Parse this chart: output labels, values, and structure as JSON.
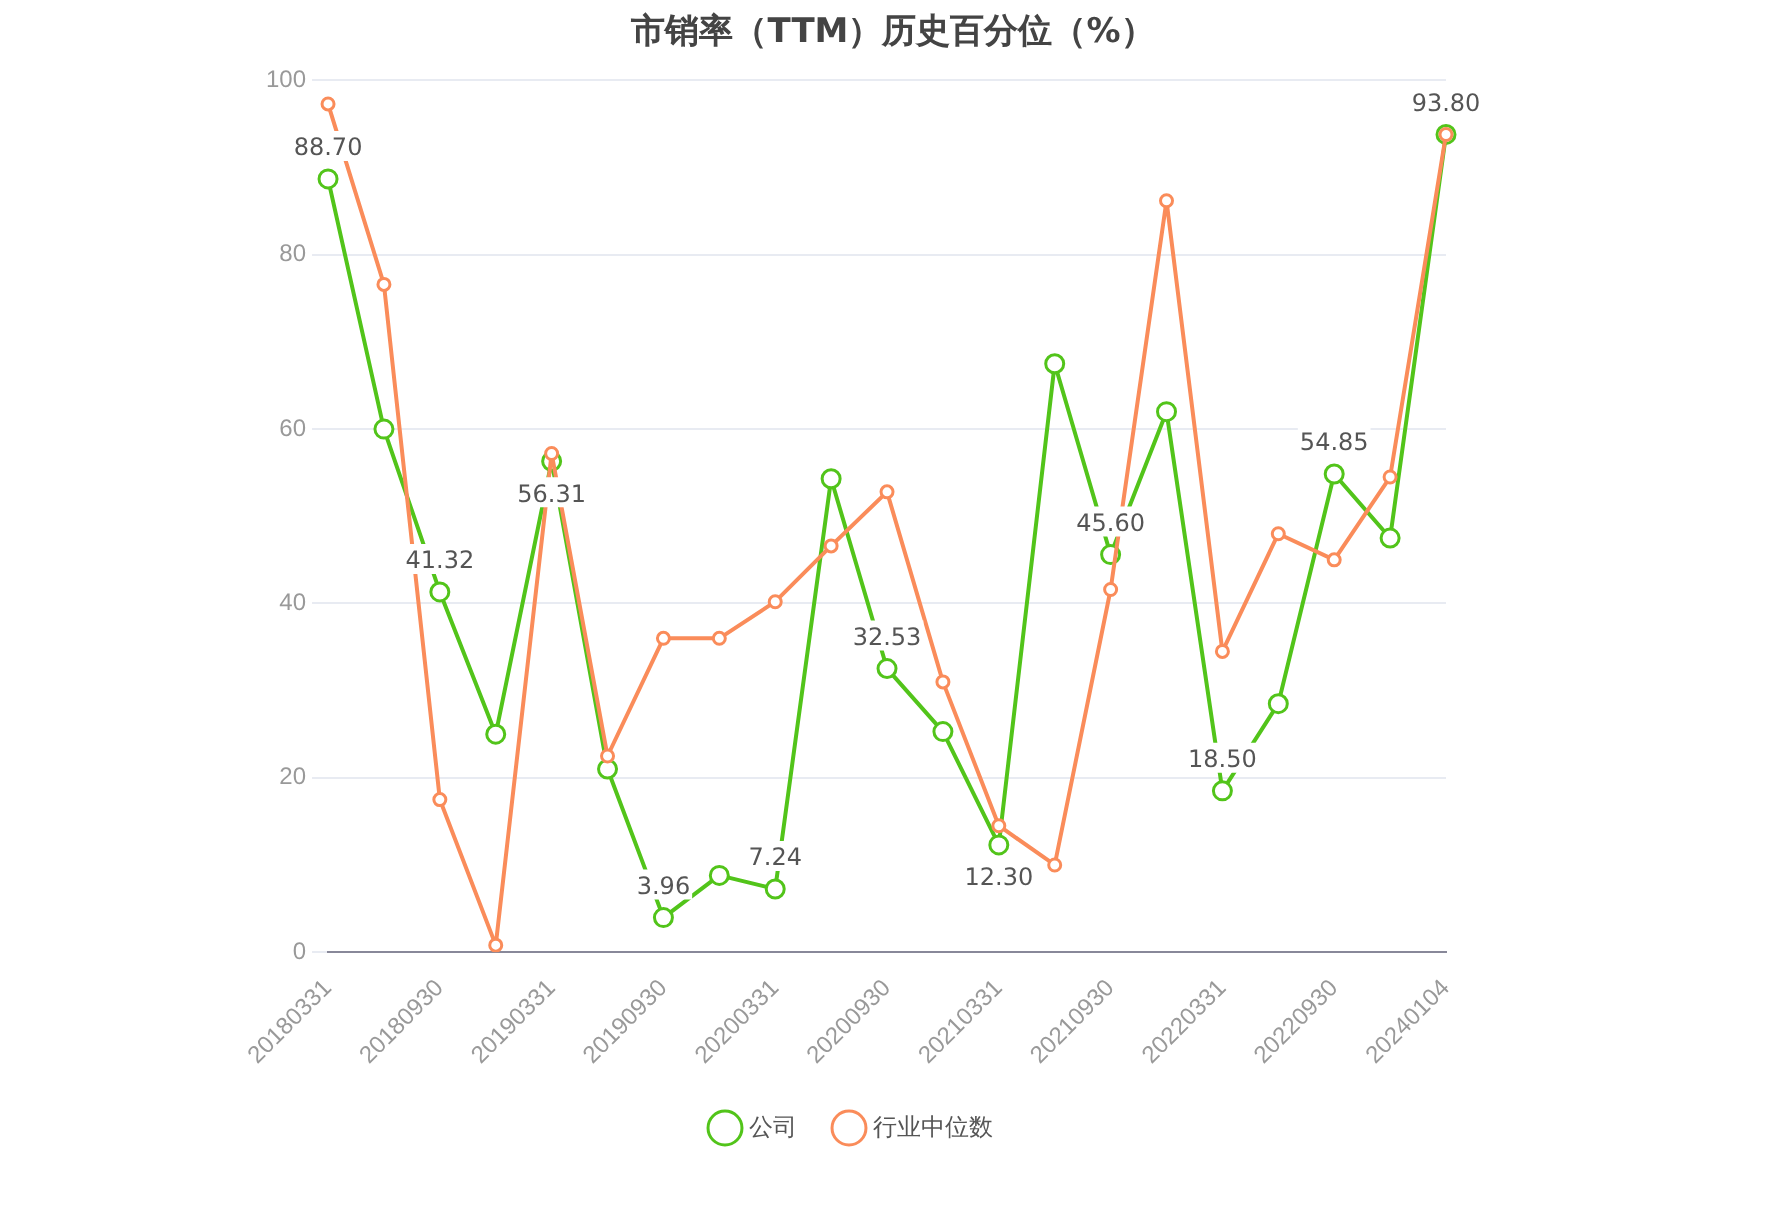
{
  "chart_data": {
    "type": "line",
    "title": "市销率（TTM）历史百分位（%）",
    "categories": [
      "20180331",
      null,
      "20180930",
      null,
      "20190331",
      null,
      "20190930",
      null,
      "20200331",
      null,
      "20200930",
      null,
      "20210331",
      null,
      "20210930",
      null,
      "20220331",
      null,
      "20220930",
      null,
      "20240104"
    ],
    "series": [
      {
        "name": "公司",
        "color": "#52c41a",
        "values": [
          88.7,
          60,
          41.32,
          25,
          56.31,
          21,
          3.96,
          8.8,
          7.24,
          54.3,
          32.53,
          25.3,
          12.3,
          67.5,
          45.6,
          62,
          18.5,
          28.5,
          54.85,
          47.5,
          93.8
        ],
        "value_labels": [
          "88.70",
          null,
          "41.32",
          null,
          "56.31",
          null,
          "3.96",
          null,
          "7.24",
          null,
          "32.53",
          null,
          "12.30",
          null,
          "45.60",
          null,
          "18.50",
          null,
          "54.85",
          null,
          "93.80"
        ]
      },
      {
        "name": "行业中位数",
        "color": "#fa8c5a",
        "values": [
          97.3,
          76.6,
          17.5,
          0.8,
          57.2,
          22.5,
          36,
          36,
          40.2,
          46.6,
          52.8,
          31,
          14.5,
          10,
          41.6,
          86.2,
          34.5,
          48,
          45,
          54.5,
          93.8
        ]
      }
    ],
    "ylim": [
      0,
      100
    ],
    "yticks": [
      0,
      20,
      40,
      60,
      80,
      100
    ],
    "grid": "y",
    "legend": "bottom",
    "marker": "circle",
    "line_style": "solid"
  }
}
